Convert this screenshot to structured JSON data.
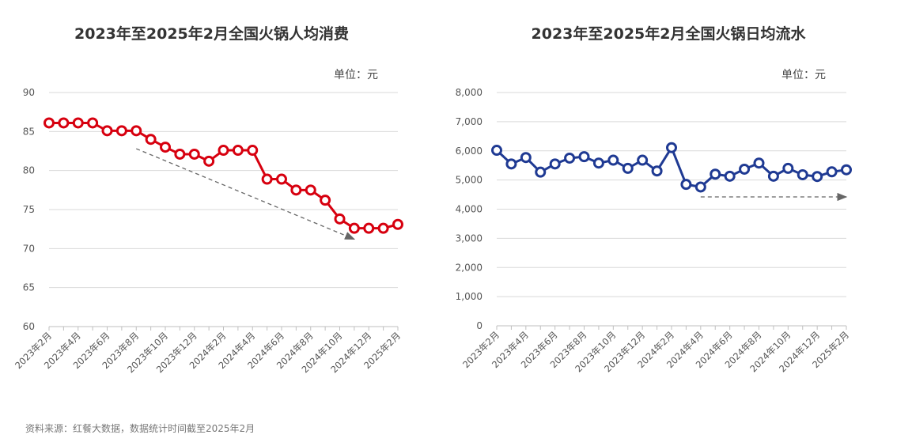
{
  "source_note": "资料来源：红餐大数据，数据统计时间截至2025年2月",
  "colors": {
    "left_series": "#d7000f",
    "right_series": "#1f3a93",
    "grid": "#d9d9d9",
    "arrow": "#666666"
  },
  "chart_data": [
    {
      "type": "line",
      "title": "2023年至2025年2月全国火锅人均消费",
      "unit_label": "单位：元",
      "ylim": [
        60,
        90
      ],
      "y_ticks": [
        "60",
        "65",
        "70",
        "75",
        "80",
        "85",
        "90"
      ],
      "x_tick_labels": [
        "2023年2月",
        "2023年4月",
        "2023年6月",
        "2023年8月",
        "2023年10月",
        "2023年12月",
        "2024年2月",
        "2024年4月",
        "2024年6月",
        "2024年8月",
        "2024年10月",
        "2024年12月",
        "2025年2月"
      ],
      "x": [
        "2023年2月",
        "2023年3月",
        "2023年4月",
        "2023年5月",
        "2023年6月",
        "2023年7月",
        "2023年8月",
        "2023年9月",
        "2023年10月",
        "2023年11月",
        "2023年12月",
        "2024年1月",
        "2024年2月",
        "2024年3月",
        "2024年4月",
        "2024年5月",
        "2024年6月",
        "2024年7月",
        "2024年8月",
        "2024年9月",
        "2024年10月",
        "2024年11月",
        "2024年12月",
        "2025年1月",
        "2025年2月"
      ],
      "series": [
        {
          "values": [
            86.1,
            86.1,
            86.1,
            86.1,
            85.1,
            85.1,
            85.1,
            84.0,
            83.0,
            82.1,
            82.1,
            81.2,
            82.6,
            82.6,
            82.6,
            78.9,
            78.9,
            77.5,
            77.5,
            76.2,
            73.8,
            72.6,
            72.6,
            72.6,
            73.1
          ]
        }
      ],
      "trend_arrow": {
        "from_index": 6,
        "to_index": 21,
        "from_value": 82.8,
        "to_value": 71.2
      },
      "grid": true
    },
    {
      "type": "line",
      "title": "2023年至2025年2月全国火锅日均流水",
      "unit_label": "单位：元",
      "ylim": [
        0,
        8000
      ],
      "y_ticks": [
        "0",
        "1,000",
        "2,000",
        "3,000",
        "4,000",
        "5,000",
        "6,000",
        "7,000",
        "8,000"
      ],
      "x_tick_labels": [
        "2023年2月",
        "2023年4月",
        "2023年6月",
        "2023年8月",
        "2023年10月",
        "2023年12月",
        "2024年2月",
        "2024年4月",
        "2024年6月",
        "2024年8月",
        "2024年10月",
        "2024年12月",
        "2025年2月"
      ],
      "x": [
        "2023年2月",
        "2023年3月",
        "2023年4月",
        "2023年5月",
        "2023年6月",
        "2023年7月",
        "2023年8月",
        "2023年9月",
        "2023年10月",
        "2023年11月",
        "2023年12月",
        "2024年1月",
        "2024年2月",
        "2024年3月",
        "2024年4月",
        "2024年5月",
        "2024年6月",
        "2024年7月",
        "2024年8月",
        "2024年9月",
        "2024年10月",
        "2024年11月",
        "2024年12月",
        "2025年1月",
        "2025年2月"
      ],
      "series": [
        {
          "values": [
            6020,
            5550,
            5770,
            5270,
            5550,
            5750,
            5800,
            5580,
            5680,
            5400,
            5680,
            5310,
            6110,
            4850,
            4760,
            5200,
            5130,
            5370,
            5580,
            5130,
            5400,
            5180,
            5120,
            5280,
            5350
          ]
        }
      ],
      "trend_arrow": {
        "from_index": 14,
        "to_index": 24,
        "from_value": 4420,
        "to_value": 4420
      },
      "grid": true
    }
  ]
}
